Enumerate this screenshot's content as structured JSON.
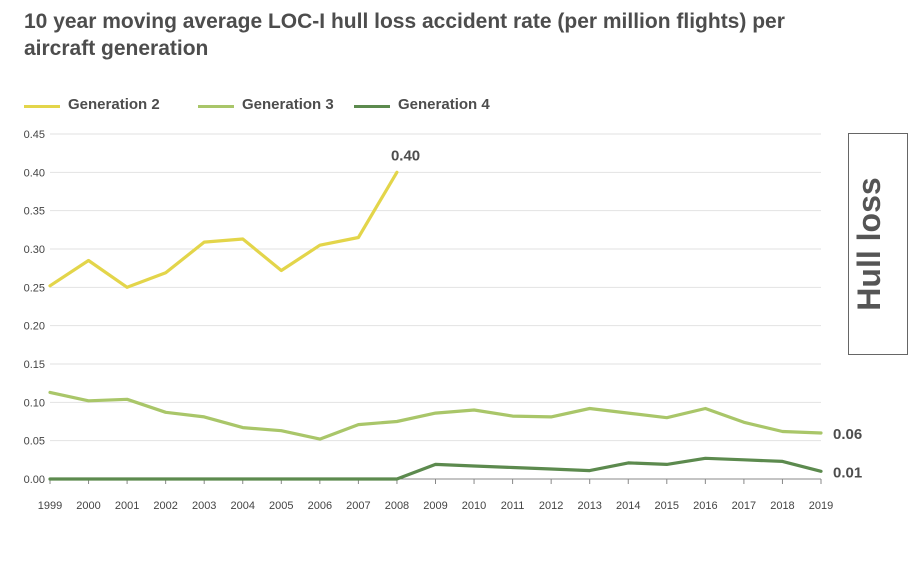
{
  "chart_data": {
    "type": "line",
    "title": "10 year moving average LOC-I hull loss accident rate (per million flights) per aircraft generation",
    "side_label": "Hull loss",
    "xlabel": "",
    "ylabel": "",
    "ylim": [
      0,
      0.45
    ],
    "grid": true,
    "legend_placement": "top-left",
    "x": [
      "1999",
      "2000",
      "2001",
      "2002",
      "2003",
      "2004",
      "2005",
      "2006",
      "2007",
      "2008",
      "2009",
      "2010",
      "2011",
      "2012",
      "2013",
      "2014",
      "2015",
      "2016",
      "2017",
      "2018",
      "2019"
    ],
    "y_ticks": [
      "0.00",
      "0.05",
      "0.10",
      "0.15",
      "0.20",
      "0.25",
      "0.30",
      "0.35",
      "0.40",
      "0.45"
    ],
    "series": [
      {
        "name": "Generation 2",
        "color": "#e3d54a",
        "values": [
          0.252,
          0.285,
          0.25,
          0.269,
          0.309,
          0.313,
          0.272,
          0.305,
          0.315,
          0.4,
          null,
          null,
          null,
          null,
          null,
          null,
          null,
          null,
          null,
          null,
          null
        ]
      },
      {
        "name": "Generation 3",
        "color": "#a9c669",
        "values": [
          0.113,
          0.102,
          0.104,
          0.087,
          0.081,
          0.067,
          0.063,
          0.052,
          0.071,
          0.075,
          0.086,
          0.09,
          0.082,
          0.081,
          0.092,
          0.086,
          0.08,
          0.092,
          0.074,
          0.062,
          0.06
        ]
      },
      {
        "name": "Generation 4",
        "color": "#5c8a4e",
        "values": [
          0.0,
          0.0,
          0.0,
          0.0,
          0.0,
          0.0,
          0.0,
          0.0,
          0.0,
          0.0,
          0.019,
          0.017,
          0.015,
          0.013,
          0.011,
          0.021,
          0.019,
          0.027,
          0.025,
          0.023,
          0.01
        ]
      }
    ],
    "annotations": [
      {
        "text": "0.40",
        "series": "Generation 2",
        "x": "2008"
      },
      {
        "text": "0.06",
        "series": "Generation 3",
        "x": "2019"
      },
      {
        "text": "0.01",
        "series": "Generation 4",
        "x": "2019"
      }
    ]
  }
}
